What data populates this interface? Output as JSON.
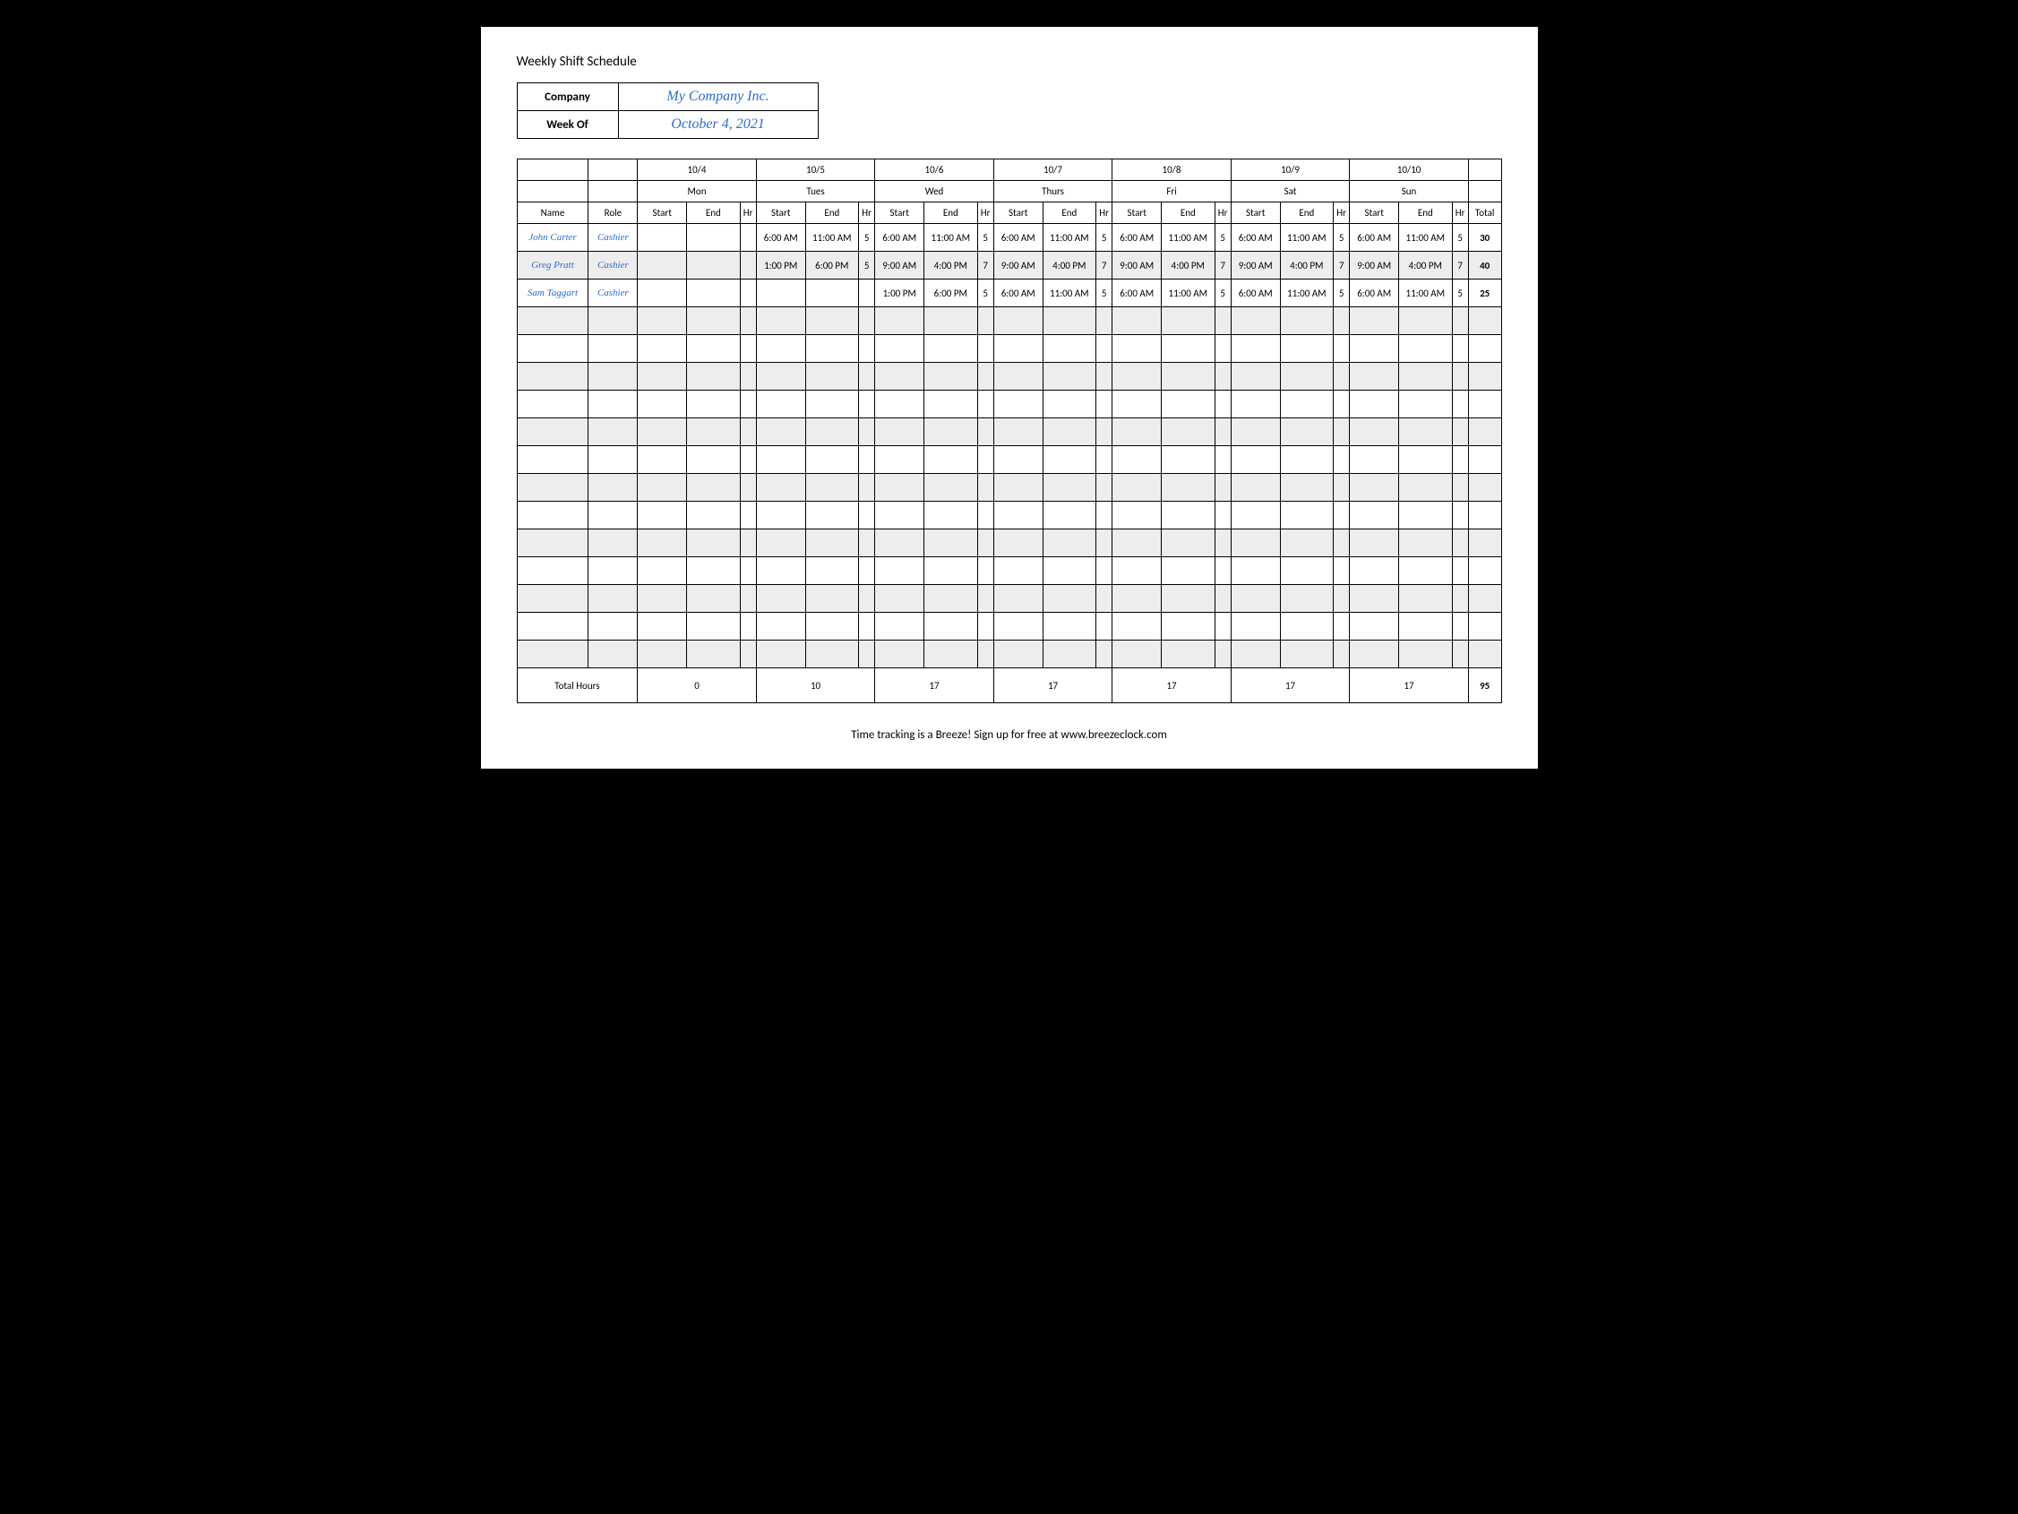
{
  "title": "Weekly Shift Schedule",
  "meta": {
    "company_label": "Company",
    "company_value": "My Company Inc.",
    "weekof_label": "Week Of",
    "weekof_value": "October 4, 2021"
  },
  "headers": {
    "dates": [
      "10/4",
      "10/5",
      "10/6",
      "10/7",
      "10/8",
      "10/9",
      "10/10"
    ],
    "days": [
      "Mon",
      "Tues",
      "Wed",
      "Thurs",
      "Fri",
      "Sat",
      "Sun"
    ],
    "name": "Name",
    "role": "Role",
    "start": "Start",
    "end": "End",
    "hr": "Hr",
    "total": "Total"
  },
  "employees": [
    {
      "name": "John Carter",
      "role": "Cashier",
      "days": [
        {
          "start": "",
          "end": "",
          "hr": ""
        },
        {
          "start": "6:00 AM",
          "end": "11:00 AM",
          "hr": "5"
        },
        {
          "start": "6:00 AM",
          "end": "11:00 AM",
          "hr": "5"
        },
        {
          "start": "6:00 AM",
          "end": "11:00 AM",
          "hr": "5"
        },
        {
          "start": "6:00 AM",
          "end": "11:00 AM",
          "hr": "5"
        },
        {
          "start": "6:00 AM",
          "end": "11:00 AM",
          "hr": "5"
        },
        {
          "start": "6:00 AM",
          "end": "11:00 AM",
          "hr": "5"
        }
      ],
      "total": "30"
    },
    {
      "name": "Greg Pratt",
      "role": "Cashier",
      "days": [
        {
          "start": "",
          "end": "",
          "hr": ""
        },
        {
          "start": "1:00 PM",
          "end": "6:00 PM",
          "hr": "5"
        },
        {
          "start": "9:00 AM",
          "end": "4:00 PM",
          "hr": "7"
        },
        {
          "start": "9:00 AM",
          "end": "4:00 PM",
          "hr": "7"
        },
        {
          "start": "9:00 AM",
          "end": "4:00 PM",
          "hr": "7"
        },
        {
          "start": "9:00 AM",
          "end": "4:00 PM",
          "hr": "7"
        },
        {
          "start": "9:00 AM",
          "end": "4:00 PM",
          "hr": "7"
        }
      ],
      "total": "40"
    },
    {
      "name": "Sam Taggart",
      "role": "Cashier",
      "days": [
        {
          "start": "",
          "end": "",
          "hr": ""
        },
        {
          "start": "",
          "end": "",
          "hr": ""
        },
        {
          "start": "1:00 PM",
          "end": "6:00 PM",
          "hr": "5"
        },
        {
          "start": "6:00 AM",
          "end": "11:00 AM",
          "hr": "5"
        },
        {
          "start": "6:00 AM",
          "end": "11:00 AM",
          "hr": "5"
        },
        {
          "start": "6:00 AM",
          "end": "11:00 AM",
          "hr": "5"
        },
        {
          "start": "6:00 AM",
          "end": "11:00 AM",
          "hr": "5"
        }
      ],
      "total": "25"
    }
  ],
  "empty_rows": 13,
  "totals": {
    "label": "Total Hours",
    "per_day": [
      "0",
      "10",
      "17",
      "17",
      "17",
      "17",
      "17"
    ],
    "grand": "95"
  },
  "footer": "Time tracking is a Breeze! Sign up for free at www.breezeclock.com",
  "style": {
    "accent_color": "#2a6bd1",
    "shade_color": "#ededed",
    "border_color": "#000000",
    "background": "#ffffff",
    "page_bg": "#000000"
  }
}
